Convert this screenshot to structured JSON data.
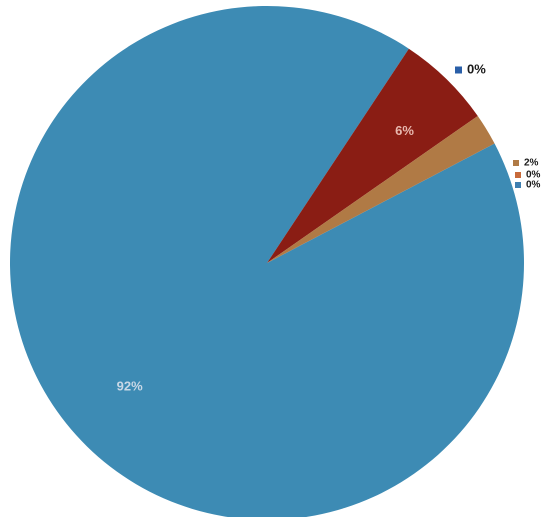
{
  "chart_data": {
    "type": "pie",
    "values": [
      92,
      6,
      2,
      0,
      0,
      0
    ],
    "labels": [
      "92%",
      "6%",
      "2%",
      "0%",
      "0%",
      "0%"
    ],
    "colors": [
      "#3d8bb4",
      "#8a1d14",
      "#b07a45",
      "#2a5fa8",
      "#c86a3a",
      "#3e7fb0"
    ],
    "legend": [
      {
        "text": "0%",
        "color": "#2a5fa8"
      },
      {
        "text": "2%",
        "color": "#b07a45"
      },
      {
        "text": "0%",
        "color": "#c86a3a"
      },
      {
        "text": "0%",
        "color": "#3e7fb0"
      }
    ],
    "title": "",
    "start_angle_deg": -27.7,
    "direction": "counterclockwise"
  }
}
